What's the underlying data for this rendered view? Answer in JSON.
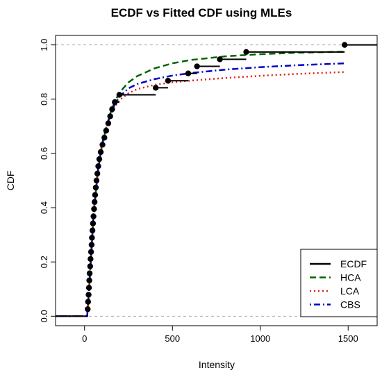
{
  "chart_data": {
    "type": "line",
    "title": "ECDF vs Fitted CDF using MLEs",
    "xlabel": "Intensity",
    "ylabel": "CDF",
    "xlim": [
      -165,
      1665
    ],
    "ylim": [
      -0.035,
      1.035
    ],
    "x_ticks": [
      0,
      500,
      1000,
      1500
    ],
    "y_ticks": [
      0.0,
      0.2,
      0.4,
      0.6,
      0.8,
      1.0
    ],
    "x_tick_labels": [
      "0",
      "500",
      "1000",
      "1500"
    ],
    "y_tick_labels": [
      "0.0",
      "0.2",
      "0.4",
      "0.6",
      "0.8",
      "1.0"
    ],
    "reference_lines_y": [
      0,
      1
    ],
    "legend_position": "bottom-right",
    "legend": [
      {
        "label": "ECDF",
        "color": "#000000",
        "style": "solid"
      },
      {
        "label": "HCA",
        "color": "#006400",
        "style": "dashed"
      },
      {
        "label": "LCA",
        "color": "#e41a1c",
        "style": "dotted"
      },
      {
        "label": "CBS",
        "color": "#0000cd",
        "style": "dotdash"
      }
    ],
    "ecdf_points": [
      [
        18,
        0.026
      ],
      [
        20,
        0.053
      ],
      [
        23,
        0.079
      ],
      [
        25,
        0.105
      ],
      [
        27,
        0.132
      ],
      [
        29,
        0.158
      ],
      [
        32,
        0.184
      ],
      [
        34,
        0.211
      ],
      [
        37,
        0.237
      ],
      [
        40,
        0.263
      ],
      [
        42,
        0.289
      ],
      [
        45,
        0.316
      ],
      [
        48,
        0.342
      ],
      [
        51,
        0.368
      ],
      [
        54,
        0.395
      ],
      [
        57,
        0.421
      ],
      [
        60,
        0.447
      ],
      [
        64,
        0.474
      ],
      [
        68,
        0.5
      ],
      [
        73,
        0.526
      ],
      [
        78,
        0.553
      ],
      [
        84,
        0.579
      ],
      [
        92,
        0.605
      ],
      [
        102,
        0.632
      ],
      [
        113,
        0.658
      ],
      [
        123,
        0.684
      ],
      [
        135,
        0.711
      ],
      [
        146,
        0.737
      ],
      [
        157,
        0.763
      ],
      [
        172,
        0.789
      ],
      [
        198,
        0.816
      ],
      [
        405,
        0.842
      ],
      [
        475,
        0.868
      ],
      [
        590,
        0.895
      ],
      [
        640,
        0.921
      ],
      [
        770,
        0.947
      ],
      [
        920,
        0.974
      ],
      [
        1480,
        1.0
      ]
    ],
    "series": [
      {
        "name": "HCA",
        "x": [
          15,
          25,
          50,
          75,
          100,
          125,
          150,
          175,
          200,
          250,
          300,
          400,
          500,
          600,
          800,
          1000,
          1200,
          1480
        ],
        "values": [
          0.0,
          0.09,
          0.36,
          0.53,
          0.63,
          0.7,
          0.755,
          0.795,
          0.825,
          0.862,
          0.885,
          0.914,
          0.932,
          0.944,
          0.958,
          0.966,
          0.971,
          0.975
        ]
      },
      {
        "name": "LCA",
        "x": [
          15,
          25,
          50,
          75,
          100,
          125,
          150,
          175,
          200,
          250,
          300,
          400,
          500,
          600,
          800,
          1000,
          1200,
          1480
        ],
        "values": [
          0.0,
          0.1,
          0.37,
          0.54,
          0.64,
          0.7,
          0.745,
          0.775,
          0.797,
          0.822,
          0.837,
          0.853,
          0.862,
          0.868,
          0.878,
          0.886,
          0.893,
          0.9
        ]
      },
      {
        "name": "CBS",
        "x": [
          15,
          25,
          50,
          75,
          100,
          125,
          150,
          175,
          200,
          250,
          300,
          400,
          500,
          600,
          800,
          1000,
          1200,
          1480
        ],
        "values": [
          0.0,
          0.09,
          0.36,
          0.53,
          0.635,
          0.7,
          0.75,
          0.785,
          0.81,
          0.84,
          0.856,
          0.874,
          0.887,
          0.896,
          0.909,
          0.918,
          0.925,
          0.932
        ]
      }
    ]
  }
}
